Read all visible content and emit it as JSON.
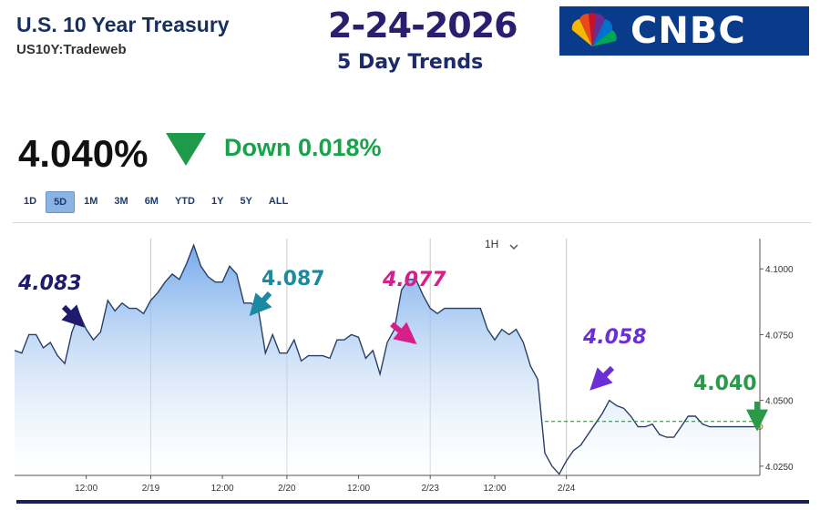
{
  "header": {
    "title": "U.S. 10 Year Treasury",
    "symbol": "US10Y:Tradeweb",
    "date": "2-24-2026",
    "subtitle": "5 Day Trends",
    "logo_text": "CNBC"
  },
  "quote": {
    "price": "4.040%",
    "change": "Down 0.018%",
    "direction_color": "#16a34a"
  },
  "ranges": [
    "1D",
    "5D",
    "1M",
    "3M",
    "6M",
    "YTD",
    "1Y",
    "5Y",
    "ALL"
  ],
  "active_range": "5D",
  "interval": {
    "label": "1H"
  },
  "annotations": [
    {
      "text": "4.083",
      "color": "#1e1b6e"
    },
    {
      "text": "4.087",
      "color": "#1b8aa0"
    },
    {
      "text": "4.077",
      "color": "#d61f8a"
    },
    {
      "text": "4.058",
      "color": "#6a2fd6"
    },
    {
      "text": "4.040",
      "color": "#2b9a48"
    }
  ],
  "chart_data": {
    "type": "area",
    "x": [
      0,
      1,
      2,
      3,
      4,
      5,
      6,
      7,
      8,
      9,
      10,
      11,
      12,
      13,
      14,
      15,
      16,
      17,
      18,
      19,
      20,
      21,
      22,
      23,
      24,
      25,
      26,
      27,
      28,
      29,
      30,
      31,
      32,
      33,
      34,
      35,
      36,
      37,
      38,
      39,
      40,
      41,
      42,
      43,
      44,
      45,
      46,
      47,
      48,
      49,
      50,
      51,
      52,
      53,
      54,
      55,
      56,
      57,
      58,
      59,
      60,
      61,
      62,
      63,
      64,
      65,
      66,
      67,
      68,
      69,
      70,
      71,
      72,
      73,
      74,
      75,
      76,
      77,
      78,
      79,
      80,
      81,
      82,
      83,
      84,
      85,
      86,
      87,
      88,
      89,
      90,
      91,
      92,
      93,
      94,
      95,
      96,
      97,
      98,
      99,
      100,
      101,
      102,
      103,
      104
    ],
    "values": [
      4.069,
      4.068,
      4.075,
      4.075,
      4.07,
      4.072,
      4.067,
      4.064,
      4.076,
      4.083,
      4.077,
      4.073,
      4.076,
      4.088,
      4.084,
      4.087,
      4.085,
      4.085,
      4.083,
      4.088,
      4.091,
      4.095,
      4.098,
      4.096,
      4.102,
      4.109,
      4.101,
      4.097,
      4.095,
      4.095,
      4.101,
      4.098,
      4.087,
      4.087,
      4.085,
      4.068,
      4.075,
      4.068,
      4.068,
      4.073,
      4.065,
      4.067,
      4.067,
      4.067,
      4.066,
      4.073,
      4.073,
      4.075,
      4.074,
      4.066,
      4.069,
      4.06,
      4.072,
      4.077,
      4.092,
      4.096,
      4.096,
      4.09,
      4.085,
      4.083,
      4.085,
      4.085,
      4.085,
      4.085,
      4.085,
      4.085,
      4.077,
      4.073,
      4.077,
      4.075,
      4.077,
      4.072,
      4.063,
      4.058,
      4.03,
      4.025,
      4.022,
      4.027,
      4.031,
      4.033,
      4.037,
      4.041,
      4.045,
      4.05,
      4.048,
      4.047,
      4.044,
      4.04,
      4.04,
      4.041,
      4.037,
      4.036,
      4.036,
      4.04,
      4.044,
      4.044,
      4.041,
      4.04,
      4.04,
      4.04,
      4.04,
      4.04,
      4.04,
      4.04,
      4.04
    ],
    "reference_line": 4.042,
    "ylim": [
      4.0215,
      4.1115
    ],
    "y_ticks": [
      4.025,
      4.05,
      4.075,
      4.1
    ],
    "y_tick_labels": [
      "4.0250",
      "4.0500",
      "4.0750",
      "4.1000"
    ],
    "x_ticks": [
      {
        "x": 10,
        "label": "12:00"
      },
      {
        "x": 19,
        "label": "2/19"
      },
      {
        "x": 29,
        "label": "12:00"
      },
      {
        "x": 38,
        "label": "2/20"
      },
      {
        "x": 48,
        "label": "12:00"
      },
      {
        "x": 58,
        "label": "2/23"
      },
      {
        "x": 67,
        "label": "12:00"
      },
      {
        "x": 77,
        "label": "2/24"
      }
    ],
    "day_dividers": [
      19,
      38,
      58,
      77
    ],
    "grid": false,
    "colors": {
      "line": "#2a3f66",
      "fill_top": "#6fa6ea",
      "fill_bottom": "#ffffff",
      "reference": "#2b7a3a"
    }
  }
}
